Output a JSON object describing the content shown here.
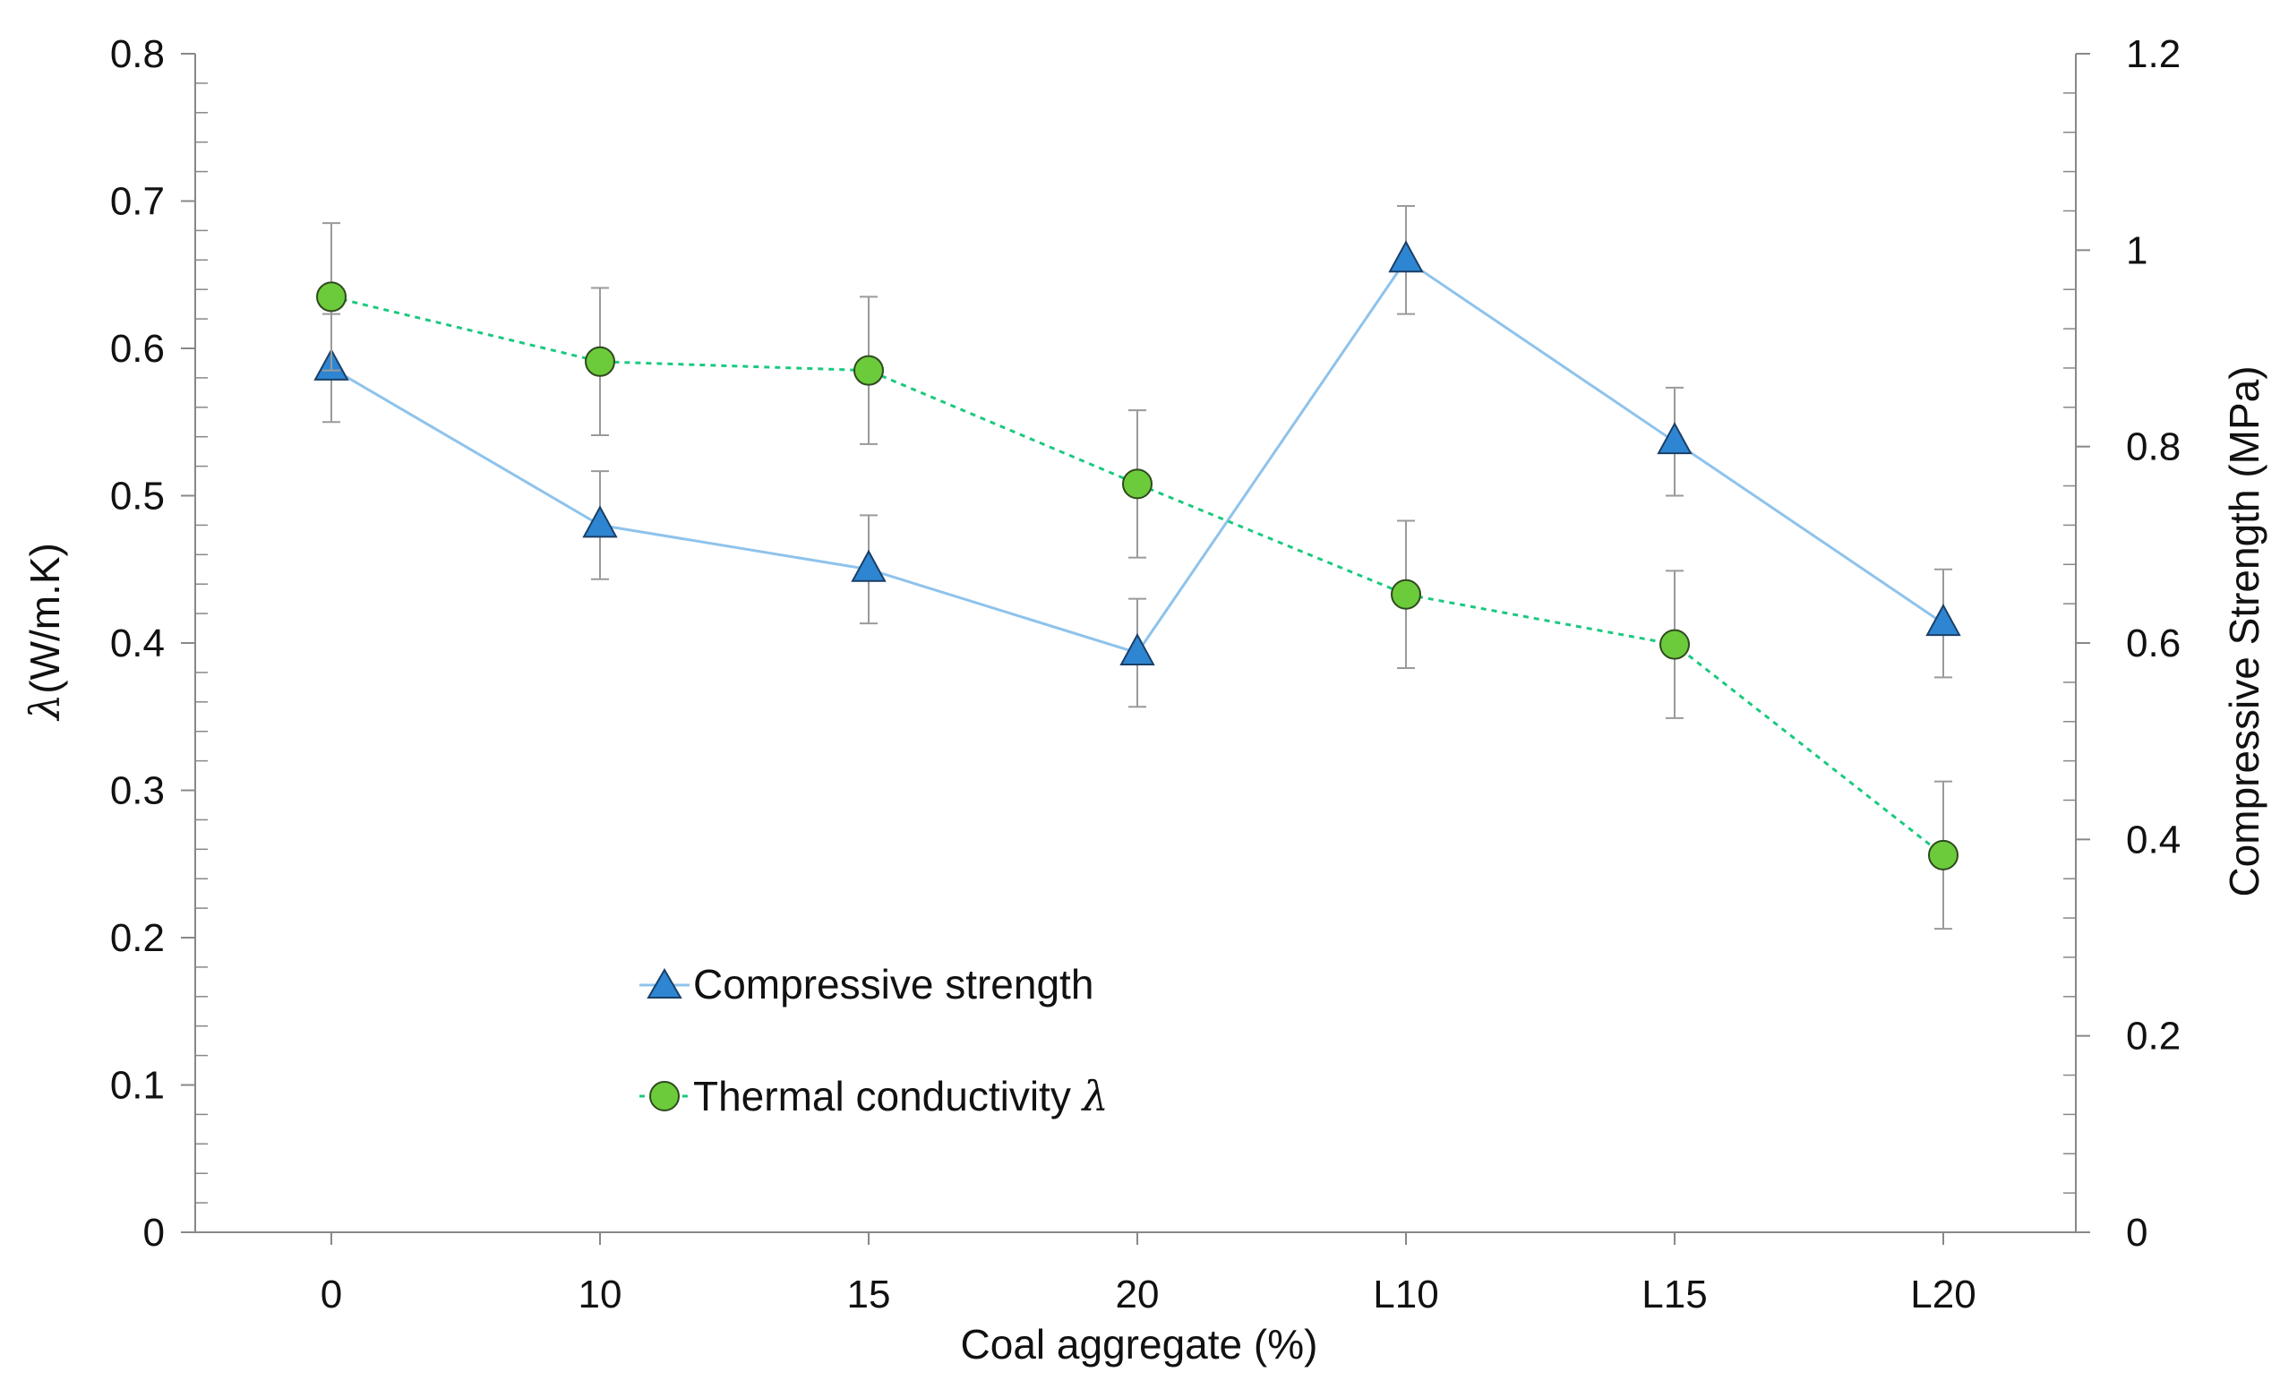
{
  "chart_data": {
    "type": "line",
    "xlabel": "Coal aggregate (%)",
    "ylabel_symbol": "λ",
    "ylabel_unit": "(W/m.K)",
    "y2label": "Compressive Strength (MPa)",
    "categories": [
      "0",
      "10",
      "15",
      "20",
      "L10",
      "L15",
      "L20"
    ],
    "ylim": [
      0,
      0.8
    ],
    "y_ticks": [
      "0",
      "0.1",
      "0.2",
      "0.3",
      "0.4",
      "0.5",
      "0.6",
      "0.7",
      "0.8"
    ],
    "y_tick_values": [
      0,
      0.1,
      0.2,
      0.3,
      0.4,
      0.5,
      0.6,
      0.7,
      0.8
    ],
    "y2lim": [
      0,
      1.2
    ],
    "y2_ticks": [
      "0",
      "0.2",
      "0.4",
      "0.6",
      "0.8",
      "1",
      "1.2"
    ],
    "y2_tick_values": [
      0,
      0.2,
      0.4,
      0.6,
      0.8,
      1.0,
      1.2
    ],
    "legend_position": "center-left",
    "series": [
      {
        "name": "Compressive strength",
        "axis": "right",
        "marker": "triangle",
        "line_style": "solid",
        "color": "#2E86D3",
        "line_color": "#8EC3EC",
        "values": [
          0.88,
          0.72,
          0.675,
          0.59,
          0.99,
          0.805,
          0.62
        ],
        "errors": [
          0.055,
          0.055,
          0.055,
          0.055,
          0.055,
          0.055,
          0.055
        ]
      },
      {
        "name": "Thermal conductivity",
        "name_symbol": "λ",
        "axis": "left",
        "marker": "circle",
        "line_style": "dotted",
        "color": "#6CCB3A",
        "line_color": "#1BC97F",
        "values": [
          0.635,
          0.591,
          0.585,
          0.508,
          0.433,
          0.399,
          0.256
        ],
        "errors": [
          0.05,
          0.05,
          0.05,
          0.05,
          0.05,
          0.05,
          0.05
        ]
      }
    ]
  }
}
